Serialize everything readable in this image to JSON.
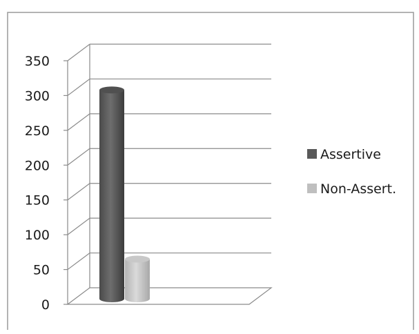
{
  "chart_data": {
    "type": "bar",
    "subtype": "3d-cylinder",
    "categories": [
      ""
    ],
    "series": [
      {
        "name": "Assertive",
        "values": [
          300
        ],
        "color": "#595959"
      },
      {
        "name": "Non-Assert.",
        "values": [
          57
        ],
        "color": "#bfbfbf"
      }
    ],
    "title": "",
    "xlabel": "",
    "ylabel": "",
    "ylim": [
      0,
      350
    ],
    "yticks": [
      "0",
      "50",
      "100",
      "150",
      "200",
      "250",
      "300",
      "350"
    ],
    "grid": true,
    "legend": "right"
  }
}
